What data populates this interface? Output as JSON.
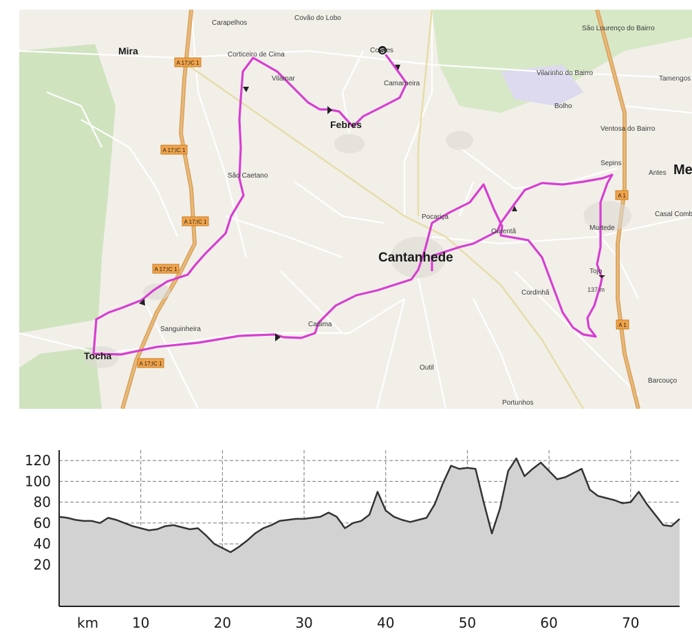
{
  "map": {
    "places": [
      {
        "name": "Mira",
        "major": true
      },
      {
        "name": "Carapelhos",
        "major": false
      },
      {
        "name": "Covão do Lobo",
        "major": false
      },
      {
        "name": "Covões",
        "major": false
      },
      {
        "name": "São Lourenço do Bairro",
        "major": false
      },
      {
        "name": "Corticeiro de Cima",
        "major": false
      },
      {
        "name": "Vilamar",
        "major": false
      },
      {
        "name": "Camarneira",
        "major": false
      },
      {
        "name": "Vilarinho do Bairro",
        "major": false
      },
      {
        "name": "Tamengos",
        "major": false
      },
      {
        "name": "Bolho",
        "major": false
      },
      {
        "name": "Febres",
        "major": true
      },
      {
        "name": "Ventosa do Bairro",
        "major": false
      },
      {
        "name": "São Caetano",
        "major": false
      },
      {
        "name": "Sepins",
        "major": false
      },
      {
        "name": "Antes",
        "major": false
      },
      {
        "name": "Me",
        "major": true
      },
      {
        "name": "Pocariça",
        "major": false
      },
      {
        "name": "Ourentã",
        "major": false
      },
      {
        "name": "Murtede",
        "major": false
      },
      {
        "name": "Casal Comba",
        "major": false
      },
      {
        "name": "Cantanhede",
        "major": true
      },
      {
        "name": "Tojo",
        "major": false
      },
      {
        "name": "137 m",
        "major": false
      },
      {
        "name": "Cordinhã",
        "major": false
      },
      {
        "name": "Sanguinheira",
        "major": false
      },
      {
        "name": "Cadima",
        "major": false
      },
      {
        "name": "Tocha",
        "major": true
      },
      {
        "name": "Outil",
        "major": false
      },
      {
        "name": "Barcouço",
        "major": false
      },
      {
        "name": "Portunhos",
        "major": false
      }
    ],
    "road_shields": [
      "A 17;IC 1",
      "A 17;IC 1",
      "A 17;IC 1",
      "A 17;IC 1",
      "A 17;IC 1",
      "A 1",
      "A 1"
    ],
    "start_marker": "S",
    "route_color": "#d63fd0",
    "forest_color": "#cfe3bf"
  },
  "chart_data": {
    "type": "area",
    "xlabel": "km",
    "x_ticks": [
      10,
      20,
      30,
      40,
      50,
      60,
      70
    ],
    "y_ticks": [
      20,
      40,
      60,
      80,
      100,
      120
    ],
    "xlim": [
      0,
      76
    ],
    "ylim": [
      -20,
      130
    ],
    "grid": true,
    "series": [
      {
        "x": [
          0,
          1,
          2,
          3,
          4,
          5,
          6,
          7,
          8,
          9,
          10,
          11,
          12,
          13,
          14,
          15,
          16,
          17,
          18,
          19,
          20,
          21,
          22,
          23,
          24,
          25,
          26,
          27,
          28,
          29,
          30,
          31,
          32,
          33,
          34,
          35,
          36,
          37,
          38,
          39,
          40,
          41,
          42,
          43,
          44,
          45,
          46,
          47,
          48,
          49,
          50,
          51,
          52,
          53,
          54,
          55,
          56,
          57,
          58,
          59,
          60,
          61,
          62,
          63,
          64,
          65,
          66,
          67,
          68,
          69,
          70,
          71,
          72,
          73,
          74,
          75,
          76
        ],
        "y": [
          66,
          65,
          63,
          62,
          62,
          60,
          65,
          63,
          60,
          57,
          55,
          53,
          54,
          57,
          58,
          56,
          54,
          55,
          48,
          40,
          36,
          32,
          37,
          43,
          50,
          55,
          58,
          62,
          63,
          64,
          64,
          65,
          66,
          70,
          66,
          55,
          60,
          62,
          68,
          90,
          72,
          66,
          63,
          61,
          63,
          65,
          78,
          98,
          115,
          112,
          113,
          112,
          80,
          50,
          74,
          110,
          122,
          105,
          112,
          118,
          110,
          102,
          104,
          108,
          112,
          92,
          86,
          84,
          82,
          79,
          80,
          90,
          78,
          68,
          58,
          57,
          64
        ]
      }
    ]
  }
}
